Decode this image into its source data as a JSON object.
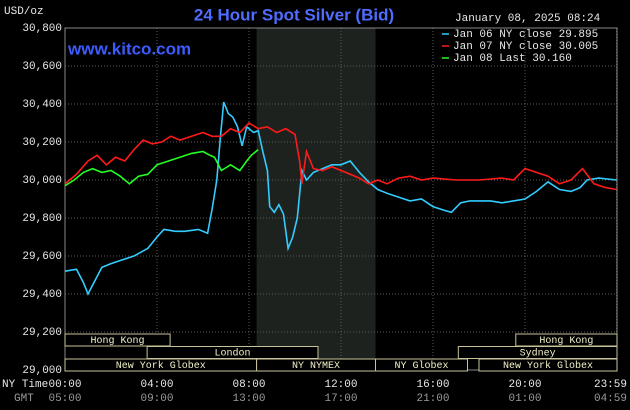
{
  "chart_data": {
    "type": "line",
    "title": "24 Hour Spot Silver (Bid)",
    "unit_label": "USD/oz",
    "website": "www.kitco.com",
    "timestamp": "January 08, 2025 08:24",
    "x_axis_label": "NY Time",
    "x2_axis_label": "GMT",
    "xlim": [
      0,
      24
    ],
    "ylim": [
      29000,
      30800
    ],
    "xticks": [
      {
        "value": 0,
        "label": "00:00"
      },
      {
        "value": 4,
        "label": "04:00"
      },
      {
        "value": 8,
        "label": "08:00"
      },
      {
        "value": 12,
        "label": "12:00"
      },
      {
        "value": 16,
        "label": "16:00"
      },
      {
        "value": 20,
        "label": "20:00"
      },
      {
        "value": 23.98,
        "label": "23:59"
      }
    ],
    "gmt_ticklabels": [
      "05:00",
      "09:00",
      "13:00",
      "17:00",
      "21:00",
      "01:00",
      "04:59"
    ],
    "yticks": [
      {
        "value": 29000,
        "label": "29,000"
      },
      {
        "value": 29200,
        "label": "29,200"
      },
      {
        "value": 29400,
        "label": "29,400"
      },
      {
        "value": 29600,
        "label": "29,600"
      },
      {
        "value": 29800,
        "label": "29,800"
      },
      {
        "value": 30000,
        "label": "30,000"
      },
      {
        "value": 30200,
        "label": "30,200"
      },
      {
        "value": 30400,
        "label": "30,400"
      },
      {
        "value": 30600,
        "label": "30,600"
      },
      {
        "value": 30800,
        "label": "30,800"
      }
    ],
    "grid": true,
    "series": [
      {
        "name": "Jan 06 NY close 29.895",
        "color": "#33ccff",
        "x": [
          0,
          0.5,
          0.8,
          1.0,
          1.3,
          1.6,
          2.0,
          2.5,
          3.0,
          3.3,
          3.6,
          4.0,
          4.3,
          4.8,
          5.2,
          5.8,
          6.2,
          6.4,
          6.6,
          6.75,
          6.9,
          7.1,
          7.3,
          7.5,
          7.7,
          7.9,
          8.2,
          8.4,
          8.6,
          8.8,
          8.9,
          9.1,
          9.3,
          9.5,
          9.7,
          9.9,
          10.1,
          10.3,
          10.5,
          10.8,
          11.2,
          11.6,
          12.0,
          12.4,
          12.8,
          13.2,
          13.6,
          14.0,
          14.5,
          15.0,
          15.5,
          16.0,
          16.5,
          16.8,
          17.2,
          17.6,
          18.0,
          18.5,
          19.0,
          19.5,
          20.0,
          20.5,
          21.0,
          21.5,
          22.0,
          22.4,
          22.7,
          23.2,
          23.98
        ],
        "values": [
          29520,
          29530,
          29460,
          29400,
          29470,
          29540,
          29560,
          29580,
          29600,
          29620,
          29640,
          29700,
          29740,
          29730,
          29730,
          29740,
          29720,
          29850,
          30000,
          30220,
          30410,
          30350,
          30330,
          30280,
          30180,
          30280,
          30250,
          30260,
          30150,
          30050,
          29860,
          29830,
          29870,
          29820,
          29640,
          29700,
          29800,
          30050,
          30000,
          30040,
          30060,
          30080,
          30080,
          30100,
          30040,
          29990,
          29950,
          29930,
          29910,
          29890,
          29900,
          29860,
          29840,
          29830,
          29880,
          29890,
          29890,
          29890,
          29880,
          29890,
          29900,
          29940,
          29990,
          29950,
          29940,
          29960,
          30000,
          30010,
          30000
        ]
      },
      {
        "name": "Jan 07 NY close 30.005",
        "color": "#ff1a1a",
        "x": [
          0,
          0.5,
          1.0,
          1.4,
          1.8,
          2.2,
          2.6,
          3.0,
          3.4,
          3.8,
          4.2,
          4.6,
          5.0,
          5.5,
          6.0,
          6.4,
          6.8,
          7.2,
          7.6,
          8.0,
          8.4,
          8.8,
          9.2,
          9.6,
          10.0,
          10.2,
          10.3,
          10.5,
          10.8,
          11.2,
          11.6,
          12.0,
          12.4,
          12.8,
          13.2,
          13.6,
          14.0,
          14.5,
          15.0,
          15.5,
          16.0,
          17.0,
          18.0,
          19.0,
          19.5,
          20.0,
          20.5,
          21.0,
          21.5,
          22.0,
          22.5,
          23.0,
          23.5,
          23.98
        ],
        "values": [
          29980,
          30030,
          30100,
          30130,
          30080,
          30120,
          30100,
          30160,
          30210,
          30190,
          30200,
          30230,
          30210,
          30230,
          30250,
          30230,
          30230,
          30270,
          30250,
          30300,
          30270,
          30280,
          30250,
          30270,
          30240,
          30100,
          29980,
          30150,
          30060,
          30050,
          30070,
          30050,
          30030,
          30010,
          29980,
          30000,
          29980,
          30010,
          30020,
          30000,
          30010,
          30000,
          30000,
          30010,
          30000,
          30060,
          30040,
          30020,
          29980,
          30000,
          30060,
          29980,
          29960,
          29950
        ]
      },
      {
        "name": "Jan 08 Last 30.160",
        "color": "#22ff22",
        "x": [
          0,
          0.4,
          0.8,
          1.2,
          1.6,
          2.0,
          2.4,
          2.8,
          3.2,
          3.6,
          4.0,
          4.5,
          5.0,
          5.5,
          6.0,
          6.3,
          6.5,
          6.8,
          7.2,
          7.6,
          7.9,
          8.1,
          8.4
        ],
        "values": [
          29970,
          30000,
          30040,
          30060,
          30040,
          30050,
          30020,
          29980,
          30020,
          30030,
          30080,
          30100,
          30120,
          30140,
          30150,
          30130,
          30120,
          30050,
          30080,
          30050,
          30100,
          30130,
          30160
        ]
      }
    ],
    "sessions": [
      [
        {
          "label": "Hong Kong",
          "start": 0,
          "end": 4.57
        },
        {
          "label": "Hong Kong",
          "start": 19.6,
          "end": 24
        }
      ],
      [
        {
          "label": "London",
          "start": 3.57,
          "end": 11.0
        },
        {
          "label": "Sydney",
          "start": 17.1,
          "end": 24
        }
      ],
      [
        {
          "label": "New York Globex",
          "start": 0,
          "end": 8.33
        },
        {
          "label": "NY NYMEX",
          "start": 8.33,
          "end": 13.5,
          "highlight": true
        },
        {
          "label": "NY Globex",
          "start": 13.5,
          "end": 17.5
        },
        {
          "label": "New York Globex",
          "start": 18.0,
          "end": 24
        }
      ]
    ]
  }
}
